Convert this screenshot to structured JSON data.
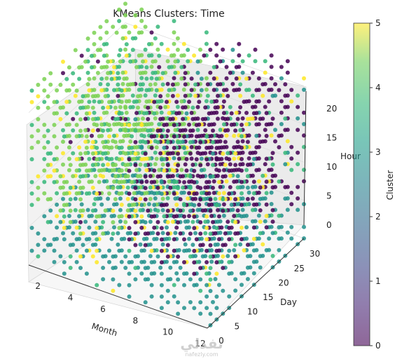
{
  "chart_data": {
    "type": "scatter3d",
    "title": "KMeans Clusters: Time",
    "axes": {
      "x": {
        "label": "Month",
        "ticks": [
          "2",
          "4",
          "6",
          "8",
          "10",
          "12"
        ],
        "range": [
          1,
          12
        ]
      },
      "y": {
        "label": "Day",
        "ticks": [
          "0",
          "5",
          "10",
          "15",
          "20",
          "25",
          "30"
        ],
        "range": [
          0,
          31
        ]
      },
      "z": {
        "label": "Hour",
        "ticks": [
          "0",
          "5",
          "10",
          "15",
          "20"
        ],
        "range": [
          0,
          23
        ]
      }
    },
    "colorbar": {
      "label": "Cluster",
      "ticks": [
        "0",
        "1",
        "2",
        "3",
        "4",
        "5"
      ],
      "range": [
        0,
        5
      ],
      "colormap": "viridis",
      "alpha": 0.6
    },
    "clusters": [
      {
        "cluster": 0,
        "color": "#440154",
        "region": "month 6–12, hour 5–23, most days"
      },
      {
        "cluster": 1,
        "color": "#3b528b",
        "region": "scattered, sparse"
      },
      {
        "cluster": 2,
        "color": "#21918c",
        "region": "all months, hour 0–5"
      },
      {
        "cluster": 3,
        "color": "#35b779",
        "region": "month 1–6, hour 5–23, mixed"
      },
      {
        "cluster": 4,
        "color": "#7ad151",
        "region": "month 1–6, hour 8–23, dominant"
      },
      {
        "cluster": 5,
        "color": "#fde725",
        "region": "scattered outliers across grid"
      }
    ],
    "grid": true,
    "watermark": {
      "text": "nafezly.com",
      "arabic": "نفذلي"
    }
  }
}
